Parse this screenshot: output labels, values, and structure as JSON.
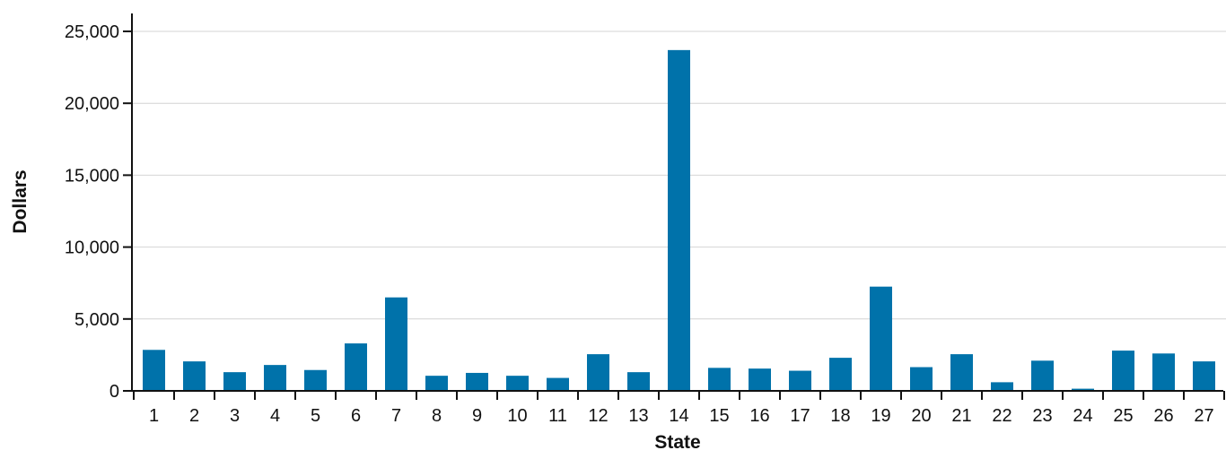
{
  "chart_data": {
    "type": "bar",
    "xlabel": "State",
    "ylabel": "Dollars",
    "ylim": [
      0,
      25000
    ],
    "yticks": [
      0,
      5000,
      10000,
      15000,
      20000,
      25000
    ],
    "ytick_labels": [
      "0",
      "5,000",
      "10,000",
      "15,000",
      "20,000",
      "25,000"
    ],
    "grid": true,
    "bar_color": "#0072aa",
    "categories": [
      "1",
      "2",
      "3",
      "4",
      "5",
      "6",
      "7",
      "8",
      "9",
      "10",
      "11",
      "12",
      "13",
      "14",
      "15",
      "16",
      "17",
      "18",
      "19",
      "20",
      "21",
      "22",
      "23",
      "24",
      "25",
      "26",
      "27"
    ],
    "values": [
      2850,
      2050,
      1300,
      1800,
      1450,
      3300,
      6500,
      1050,
      1250,
      1050,
      900,
      2550,
      1300,
      23700,
      1600,
      1550,
      1400,
      2300,
      7250,
      1650,
      2550,
      600,
      2100,
      150,
      2800,
      2600,
      2050
    ]
  }
}
